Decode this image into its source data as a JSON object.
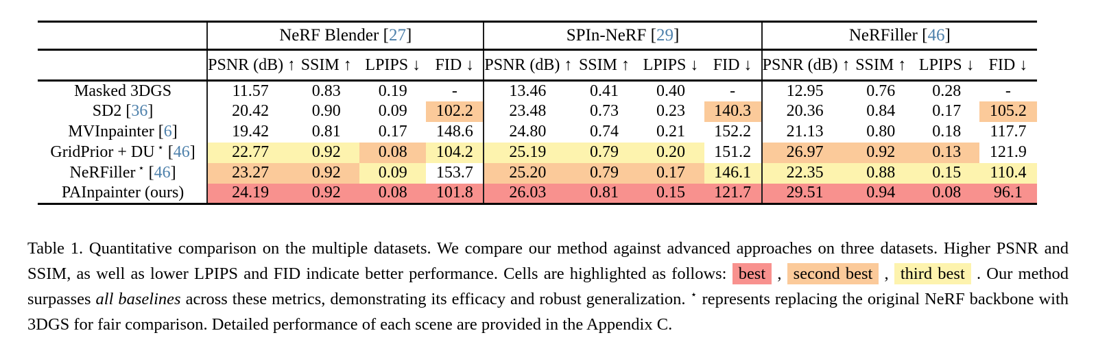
{
  "colors": {
    "best": "#f8918e",
    "second_best": "#fbca9a",
    "third_best": "#fdf3ae",
    "citation": "#4d80ab"
  },
  "table": {
    "groups": [
      {
        "name": "NeRF Blender",
        "cite": "27"
      },
      {
        "name": "SPIn-NeRF",
        "cite": "29"
      },
      {
        "name": "NeRFiller",
        "cite": "46"
      }
    ],
    "metric_columns": [
      "PSNR (dB) ↑",
      "SSIM ↑",
      "LPIPS ↓",
      "FID ↓"
    ],
    "rows": [
      {
        "label": "Masked 3DGS",
        "star": false,
        "cite": null,
        "cells": [
          {
            "v": "11.57",
            "hl": null
          },
          {
            "v": "0.83",
            "hl": null
          },
          {
            "v": "0.19",
            "hl": null
          },
          {
            "v": "-",
            "hl": null
          },
          {
            "v": "13.46",
            "hl": null
          },
          {
            "v": "0.41",
            "hl": null
          },
          {
            "v": "0.40",
            "hl": null
          },
          {
            "v": "-",
            "hl": null
          },
          {
            "v": "12.95",
            "hl": null
          },
          {
            "v": "0.76",
            "hl": null
          },
          {
            "v": "0.28",
            "hl": null
          },
          {
            "v": "-",
            "hl": null
          }
        ]
      },
      {
        "label": "SD2",
        "star": false,
        "cite": "36",
        "cells": [
          {
            "v": "20.42",
            "hl": null
          },
          {
            "v": "0.90",
            "hl": null
          },
          {
            "v": "0.09",
            "hl": null
          },
          {
            "v": "102.2",
            "hl": "second"
          },
          {
            "v": "23.48",
            "hl": null
          },
          {
            "v": "0.73",
            "hl": null
          },
          {
            "v": "0.23",
            "hl": null
          },
          {
            "v": "140.3",
            "hl": "second"
          },
          {
            "v": "20.36",
            "hl": null
          },
          {
            "v": "0.84",
            "hl": null
          },
          {
            "v": "0.17",
            "hl": null
          },
          {
            "v": "105.2",
            "hl": "second"
          }
        ]
      },
      {
        "label": "MVInpainter",
        "star": false,
        "cite": "6",
        "cells": [
          {
            "v": "19.42",
            "hl": null
          },
          {
            "v": "0.81",
            "hl": null
          },
          {
            "v": "0.17",
            "hl": null
          },
          {
            "v": "148.6",
            "hl": null
          },
          {
            "v": "24.80",
            "hl": null
          },
          {
            "v": "0.74",
            "hl": null
          },
          {
            "v": "0.21",
            "hl": null
          },
          {
            "v": "152.2",
            "hl": null
          },
          {
            "v": "21.13",
            "hl": null
          },
          {
            "v": "0.80",
            "hl": null
          },
          {
            "v": "0.18",
            "hl": null
          },
          {
            "v": "117.7",
            "hl": null
          }
        ]
      },
      {
        "label": "GridPrior + DU",
        "star": true,
        "cite": "46",
        "cells": [
          {
            "v": "22.77",
            "hl": "third"
          },
          {
            "v": "0.92",
            "hl": "third"
          },
          {
            "v": "0.08",
            "hl": "second"
          },
          {
            "v": "104.2",
            "hl": "third"
          },
          {
            "v": "25.19",
            "hl": "third"
          },
          {
            "v": "0.79",
            "hl": "third"
          },
          {
            "v": "0.20",
            "hl": "third"
          },
          {
            "v": "151.2",
            "hl": null
          },
          {
            "v": "26.97",
            "hl": "second"
          },
          {
            "v": "0.92",
            "hl": "second"
          },
          {
            "v": "0.13",
            "hl": "second"
          },
          {
            "v": "121.9",
            "hl": null
          }
        ]
      },
      {
        "label": "NeRFiller",
        "star": true,
        "cite": "46",
        "cells": [
          {
            "v": "23.27",
            "hl": "second"
          },
          {
            "v": "0.92",
            "hl": "second"
          },
          {
            "v": "0.09",
            "hl": "third"
          },
          {
            "v": "153.7",
            "hl": null
          },
          {
            "v": "25.20",
            "hl": "second"
          },
          {
            "v": "0.79",
            "hl": "second"
          },
          {
            "v": "0.17",
            "hl": "second"
          },
          {
            "v": "146.1",
            "hl": "third"
          },
          {
            "v": "22.35",
            "hl": "third"
          },
          {
            "v": "0.88",
            "hl": "third"
          },
          {
            "v": "0.15",
            "hl": "third"
          },
          {
            "v": "110.4",
            "hl": "third"
          }
        ]
      },
      {
        "label": "PAInpainter (ours)",
        "star": false,
        "cite": null,
        "cells": [
          {
            "v": "24.19",
            "hl": "best"
          },
          {
            "v": "0.92",
            "hl": "best"
          },
          {
            "v": "0.08",
            "hl": "best"
          },
          {
            "v": "101.8",
            "hl": "best"
          },
          {
            "v": "26.03",
            "hl": "best"
          },
          {
            "v": "0.81",
            "hl": "best"
          },
          {
            "v": "0.15",
            "hl": "best"
          },
          {
            "v": "121.7",
            "hl": "best"
          },
          {
            "v": "29.51",
            "hl": "best"
          },
          {
            "v": "0.94",
            "hl": "best"
          },
          {
            "v": "0.08",
            "hl": "best"
          },
          {
            "v": "96.1",
            "hl": "best"
          }
        ]
      }
    ]
  },
  "caption": {
    "segments": [
      {
        "style": "plain",
        "text": "Table 1. Quantitative comparison on the multiple datasets. We compare our method against advanced approaches on three datasets. Higher PSNR and SSIM, as well as lower LPIPS and FID indicate better performance. Cells are highlighted as follows: "
      },
      {
        "style": "hl-best",
        "text": "best"
      },
      {
        "style": "plain",
        "text": " , "
      },
      {
        "style": "hl-second",
        "text": "second best"
      },
      {
        "style": "plain",
        "text": " , "
      },
      {
        "style": "hl-third",
        "text": "third best"
      },
      {
        "style": "plain",
        "text": " . Our method surpasses "
      },
      {
        "style": "italic",
        "text": "all baselines"
      },
      {
        "style": "plain",
        "text": " across these metrics, demonstrating its efficacy and robust generalization. "
      },
      {
        "style": "super",
        "text": "⋆"
      },
      {
        "style": "plain",
        "text": " represents replacing the original NeRF backbone with 3DGS for fair comparison. Detailed performance of each scene are provided in the Appendix C."
      }
    ]
  }
}
